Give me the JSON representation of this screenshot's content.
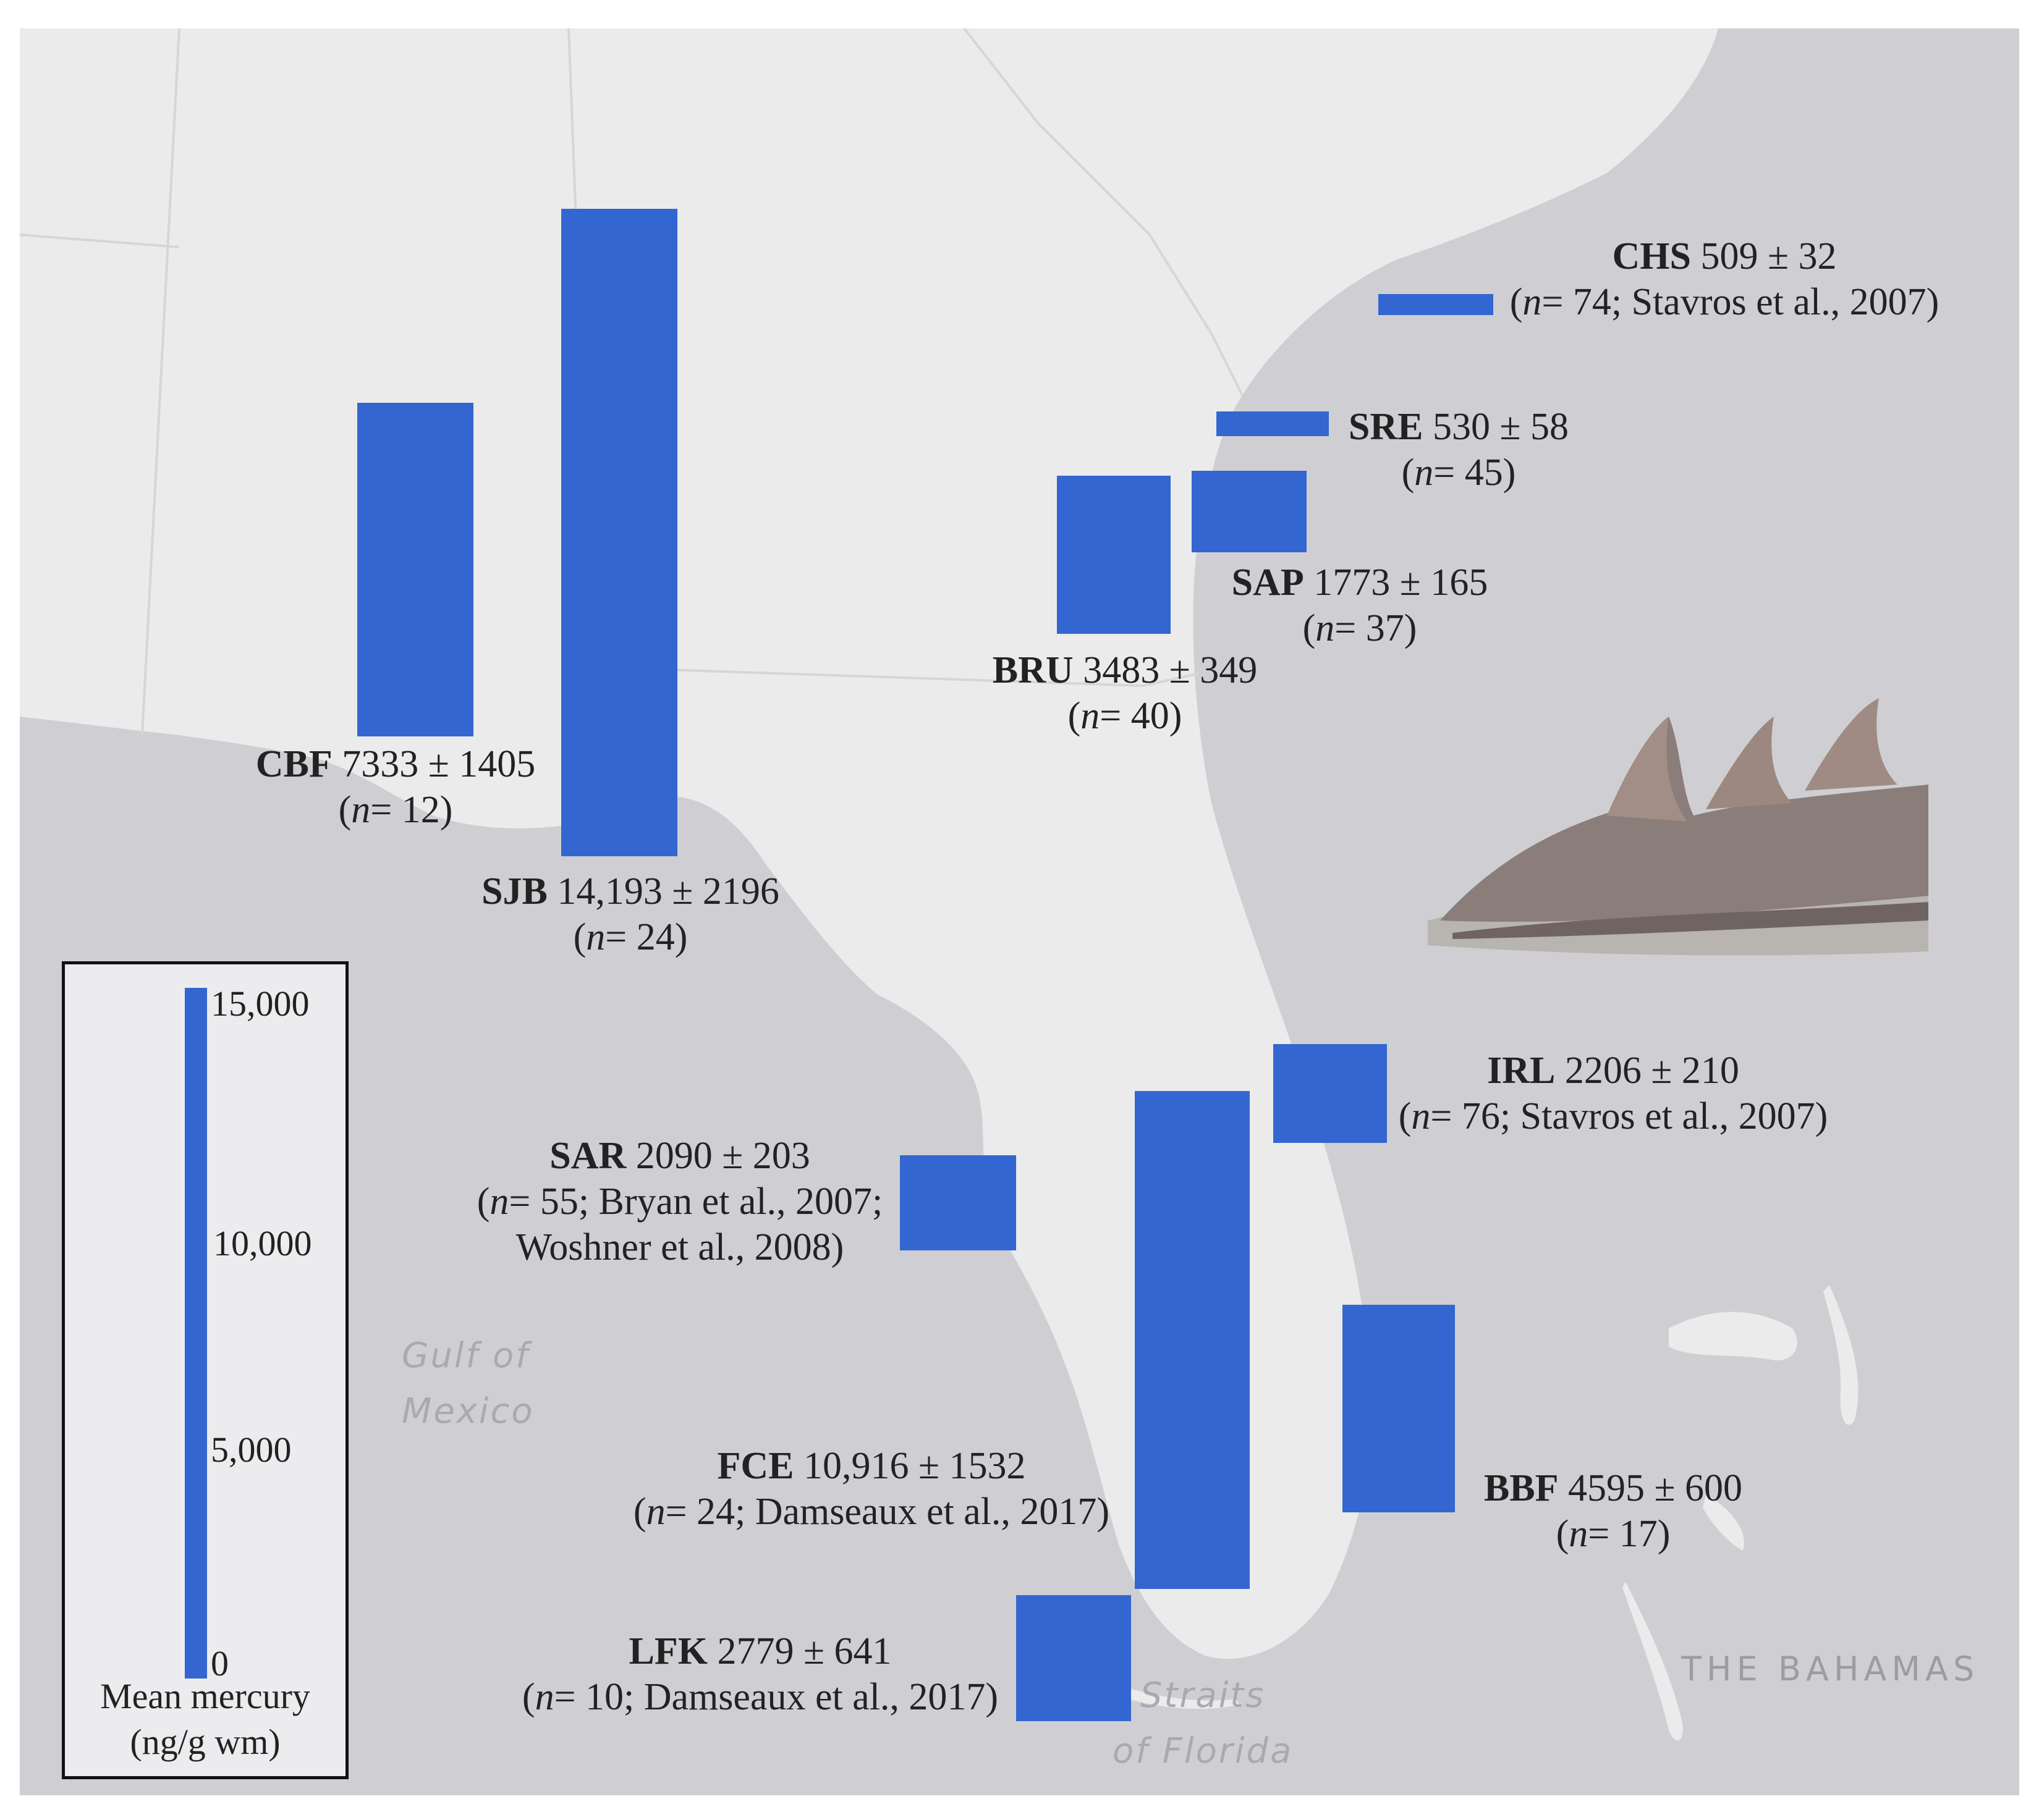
{
  "map": {
    "water_labels": {
      "gulf": [
        "Gulf of",
        "Mexico"
      ],
      "straits": [
        "Straits",
        "of Florida"
      ]
    },
    "place_labels": {
      "bahamas": "THE BAHAMAS"
    },
    "colors": {
      "bar": "#3366d0",
      "land": "#eaeaea",
      "water": "#cfcfd3",
      "border": "#d4d4d4"
    }
  },
  "sites": [
    {
      "code": "CBF",
      "value": "7333 ± 1405",
      "n": "12",
      "ref": ""
    },
    {
      "code": "SJB",
      "value": "14,193 ± 2196",
      "n": "24",
      "ref": ""
    },
    {
      "code": "CHS",
      "value": "509 ± 32",
      "n": "74",
      "ref": "; Stavros et al., 2007)"
    },
    {
      "code": "SRE",
      "value": "530 ± 58",
      "n": "45",
      "ref": ""
    },
    {
      "code": "SAP",
      "value": "1773 ± 165",
      "n": "37",
      "ref": ""
    },
    {
      "code": "BRU",
      "value": "3483 ± 349",
      "n": "40",
      "ref": ""
    },
    {
      "code": "IRL",
      "value": "2206 ± 210",
      "n": "76",
      "ref": "; Stavros et al., 2007)"
    },
    {
      "code": "SAR",
      "value": "2090 ± 203",
      "n": "55",
      "ref": "; Bryan et al., 2007;",
      "ref2": "Woshner et al., 2008)"
    },
    {
      "code": "FCE",
      "value": "10,916 ± 1532",
      "n": "24",
      "ref": "; Damseaux et al., 2017)"
    },
    {
      "code": "BBF",
      "value": "4595 ± 600",
      "n": "17",
      "ref": ""
    },
    {
      "code": "LFK",
      "value": "2779 ± 641",
      "n": "10",
      "ref": "; Damseaux et al., 2017)"
    }
  ],
  "legend": {
    "ticks": [
      "15,000",
      "10,000",
      "5,000",
      "0"
    ],
    "title_line1": "Mean mercury",
    "title_line2": "(ng/g wm)"
  },
  "n_prefix": "(",
  "n_italic": "n",
  "n_eq": "= ",
  "n_close": ")"
}
